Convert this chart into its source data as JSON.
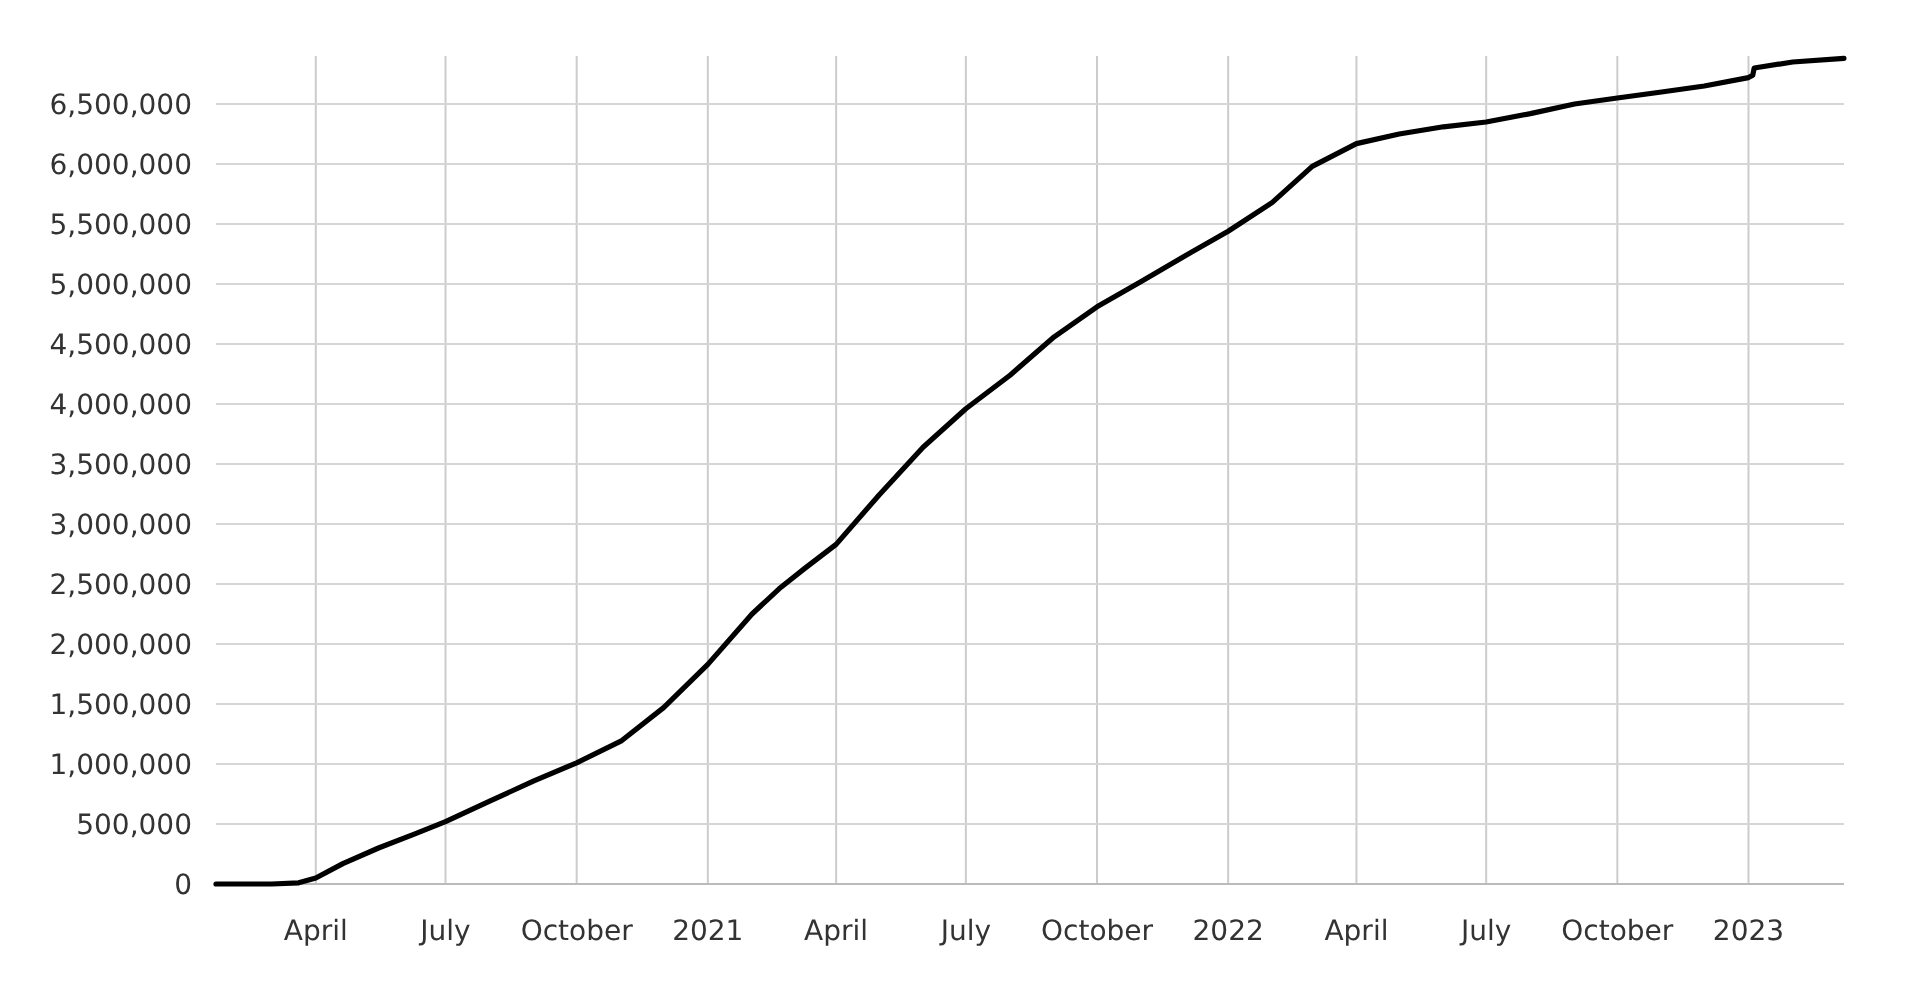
{
  "chart_data": {
    "type": "line",
    "x": [
      "2020-01-22",
      "2020-03-01",
      "2020-03-20",
      "2020-04-01",
      "2020-04-20",
      "2020-05-15",
      "2020-06-10",
      "2020-07-01",
      "2020-08-01",
      "2020-09-01",
      "2020-10-01",
      "2020-11-01",
      "2020-12-01",
      "2021-01-01",
      "2021-02-01",
      "2021-02-20",
      "2021-03-10",
      "2021-04-01",
      "2021-05-01",
      "2021-06-01",
      "2021-07-01",
      "2021-08-01",
      "2021-09-01",
      "2021-10-01",
      "2021-11-01",
      "2021-12-01",
      "2022-01-01",
      "2022-02-01",
      "2022-03-01",
      "2022-04-01",
      "2022-05-01",
      "2022-06-01",
      "2022-07-01",
      "2022-08-01",
      "2022-09-01",
      "2022-10-01",
      "2022-11-01",
      "2022-12-01",
      "2023-01-01",
      "2023-01-04",
      "2023-01-05",
      "2023-02-01",
      "2023-03-09"
    ],
    "series": [
      {
        "color": "#000000",
        "values": [
          0,
          0,
          10000,
          50000,
          170000,
          300000,
          420000,
          520000,
          690000,
          860000,
          1010000,
          1190000,
          1470000,
          1830000,
          2250000,
          2460000,
          2630000,
          2830000,
          3240000,
          3640000,
          3960000,
          4240000,
          4560000,
          4810000,
          5020000,
          5230000,
          5440000,
          5680000,
          5980000,
          6170000,
          6250000,
          6310000,
          6350000,
          6420000,
          6500000,
          6550000,
          6600000,
          6650000,
          6720000,
          6740000,
          6800000,
          6850000,
          6880000
        ]
      }
    ],
    "xlim": [
      "2020-01-22",
      "2023-03-09"
    ],
    "xticks": [
      {
        "value": "2020-04-01",
        "label": "April"
      },
      {
        "value": "2020-07-01",
        "label": "July"
      },
      {
        "value": "2020-10-01",
        "label": "October"
      },
      {
        "value": "2021-01-01",
        "label": "2021"
      },
      {
        "value": "2021-04-01",
        "label": "April"
      },
      {
        "value": "2021-07-01",
        "label": "July"
      },
      {
        "value": "2021-10-01",
        "label": "October"
      },
      {
        "value": "2022-01-01",
        "label": "2022"
      },
      {
        "value": "2022-04-01",
        "label": "April"
      },
      {
        "value": "2022-07-01",
        "label": "July"
      },
      {
        "value": "2022-10-01",
        "label": "October"
      },
      {
        "value": "2023-01-01",
        "label": "2023"
      }
    ],
    "ylim": [
      0,
      6900000
    ],
    "yticks": [
      0,
      {
        "value": 500000,
        "label": "500,000"
      },
      {
        "value": 1000000,
        "label": "1,000,000"
      },
      {
        "value": 1500000,
        "label": "1,500,000"
      },
      {
        "value": 2000000,
        "label": "2,000,000"
      },
      {
        "value": 2500000,
        "label": "2,500,000"
      },
      {
        "value": 3000000,
        "label": "3,000,000"
      },
      {
        "value": 3500000,
        "label": "3,500,000"
      },
      {
        "value": 4000000,
        "label": "4,000,000"
      },
      {
        "value": 4500000,
        "label": "4,500,000"
      },
      {
        "value": 5000000,
        "label": "5,000,000"
      },
      {
        "value": 5500000,
        "label": "5,500,000"
      },
      {
        "value": 6000000,
        "label": "6,000,000"
      },
      {
        "value": 6500000,
        "label": "6,500,000"
      }
    ],
    "grid": true,
    "line_style": "solid"
  }
}
